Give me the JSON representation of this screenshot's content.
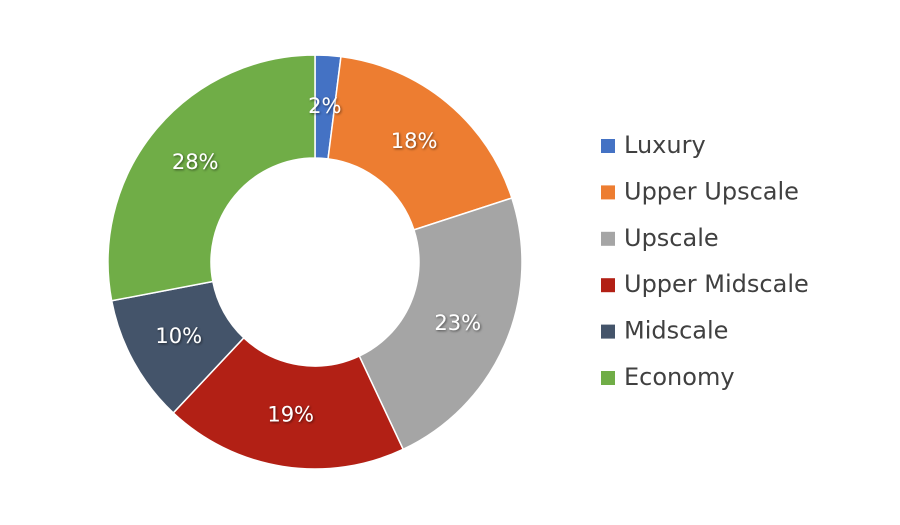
{
  "chart_data": {
    "type": "donut",
    "categories": [
      "Luxury",
      "Upper Upscale",
      "Upscale",
      "Upper Midscale",
      "Midscale",
      "Economy"
    ],
    "values": [
      2,
      18,
      23,
      19,
      10,
      28
    ],
    "value_labels": [
      "2%",
      "18%",
      "23%",
      "19%",
      "10%",
      "28%"
    ],
    "colors": [
      "#4472c4",
      "#ed7d31",
      "#a5a5a5",
      "#b22015",
      "#44546a",
      "#70ad47"
    ],
    "legend": "right"
  }
}
